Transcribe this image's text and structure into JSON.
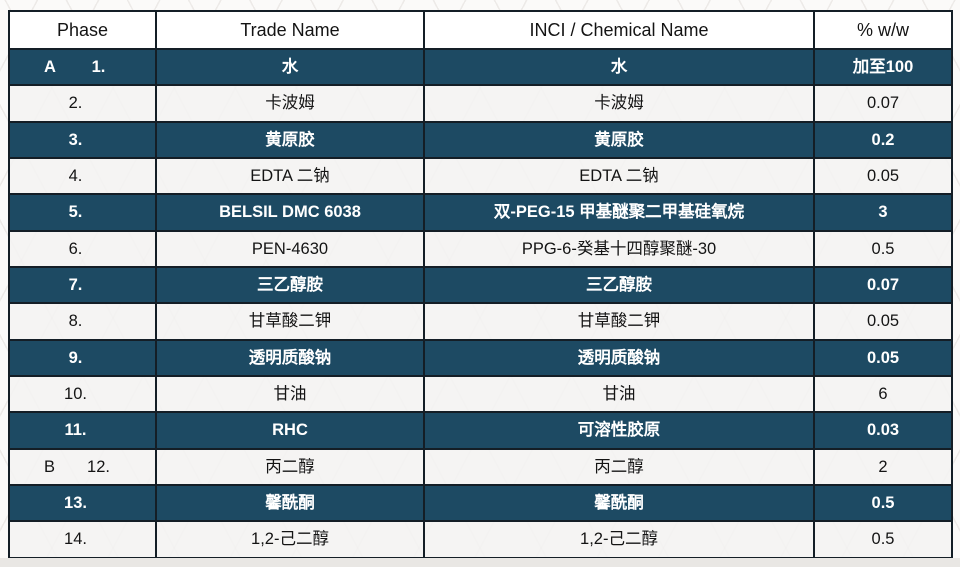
{
  "table": {
    "columns": [
      {
        "key": "phase",
        "label": "Phase"
      },
      {
        "key": "trade",
        "label": "Trade Name"
      },
      {
        "key": "inci",
        "label": "INCI / Chemical Name"
      },
      {
        "key": "pct",
        "label": "% w/w"
      }
    ],
    "rows": [
      {
        "letter": "A",
        "num": "1.",
        "trade": "水",
        "inci": "水",
        "pct": "加至100",
        "dark": true
      },
      {
        "letter": "",
        "num": "2.",
        "trade": "卡波姆",
        "inci": "卡波姆",
        "pct": "0.07",
        "dark": false
      },
      {
        "letter": "",
        "num": "3.",
        "trade": "黄原胶",
        "inci": "黄原胶",
        "pct": "0.2",
        "dark": true
      },
      {
        "letter": "",
        "num": "4.",
        "trade": "EDTA 二钠",
        "inci": "EDTA 二钠",
        "pct": "0.05",
        "dark": false
      },
      {
        "letter": "",
        "num": "5.",
        "trade": "BELSIL DMC 6038",
        "inci": "双-PEG-15 甲基醚聚二甲基硅氧烷",
        "pct": "3",
        "dark": true
      },
      {
        "letter": "",
        "num": "6.",
        "trade": "PEN-4630",
        "inci": "PPG-6-癸基十四醇聚醚-30",
        "pct": "0.5",
        "dark": false
      },
      {
        "letter": "",
        "num": "7.",
        "trade": "三乙醇胺",
        "inci": "三乙醇胺",
        "pct": "0.07",
        "dark": true
      },
      {
        "letter": "",
        "num": "8.",
        "trade": "甘草酸二钾",
        "inci": "甘草酸二钾",
        "pct": "0.05",
        "dark": false
      },
      {
        "letter": "",
        "num": "9.",
        "trade": "透明质酸钠",
        "inci": "透明质酸钠",
        "pct": "0.05",
        "dark": true
      },
      {
        "letter": "",
        "num": "10.",
        "trade": "甘油",
        "inci": "甘油",
        "pct": "6",
        "dark": false
      },
      {
        "letter": "",
        "num": "11.",
        "trade": "RHC",
        "inci": "可溶性胶原",
        "pct": "0.03",
        "dark": true
      },
      {
        "letter": "B",
        "num": "12.",
        "trade": "丙二醇",
        "inci": "丙二醇",
        "pct": "2",
        "dark": false
      },
      {
        "letter": "",
        "num": "13.",
        "trade": "馨酰酮",
        "inci": "馨酰酮",
        "pct": "0.5",
        "dark": true
      },
      {
        "letter": "",
        "num": "14.",
        "trade": "1,2-己二醇",
        "inci": "1,2-己二醇",
        "pct": "0.5",
        "dark": false
      }
    ]
  },
  "colors": {
    "dark_row": "#1d4a63",
    "light_row": "rgba(244,243,241,0.88)",
    "border": "#141e26",
    "header_bg": "#ffffff",
    "dark_text": "#ffffff",
    "light_text": "#141414",
    "canvas_bg": "#fbfaf9",
    "below_strip": "#e9e7e4"
  }
}
